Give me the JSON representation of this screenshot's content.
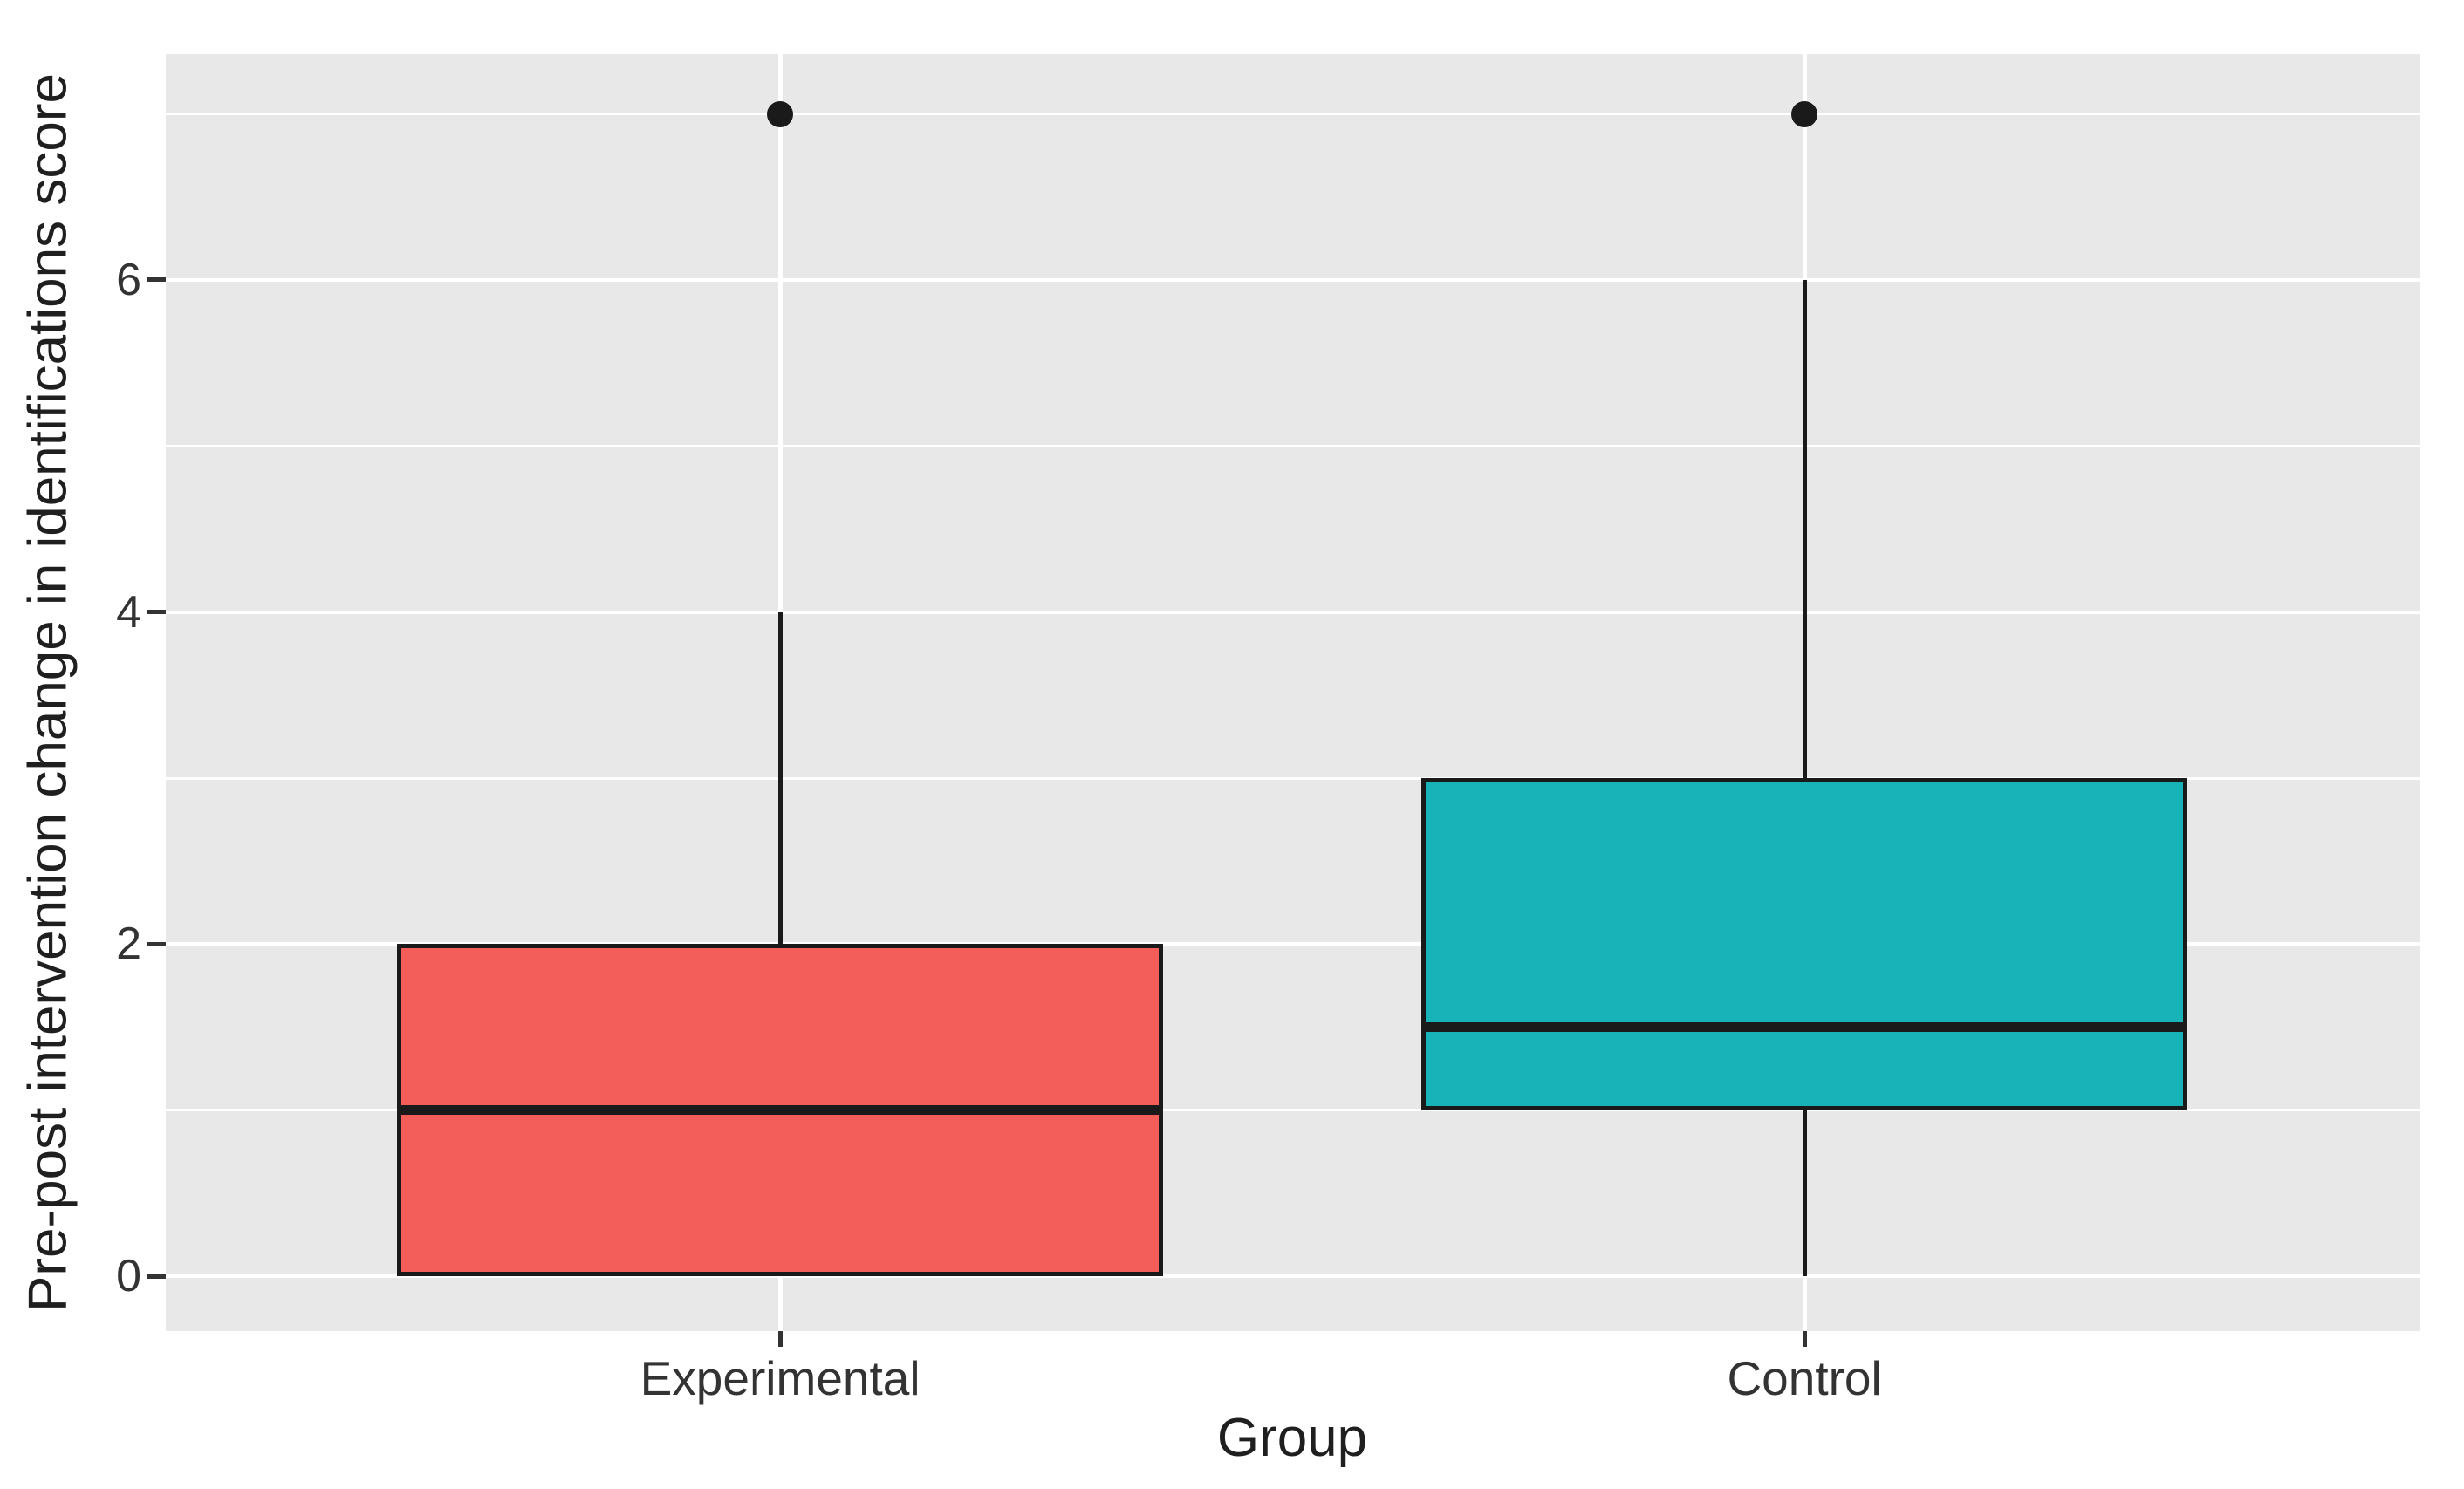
{
  "chart_data": {
    "type": "boxplot",
    "title": "",
    "xlabel": "Group",
    "ylabel": "Pre-post intervention change in identifications score",
    "categories": [
      "Experimental",
      "Control"
    ],
    "y_ticks": [
      0,
      2,
      4,
      6
    ],
    "y_minor_ticks": [
      1,
      3,
      5,
      7
    ],
    "ylim": [
      -0.33,
      7.36
    ],
    "grid": true,
    "legend": "none",
    "panel_bg": "#E8E8E8",
    "grid_color": "#FFFFFF",
    "box_border_color": "#1A1A1A",
    "series": [
      {
        "name": "Experimental",
        "fill": "#F35E5B",
        "whisker_low": 0,
        "q1": 0,
        "median": 1,
        "q3": 2,
        "whisker_high": 4,
        "outliers": [
          7
        ]
      },
      {
        "name": "Control",
        "fill": "#18B3B8",
        "whisker_low": 0,
        "q1": 1,
        "median": 1.5,
        "q3": 3,
        "whisker_high": 6,
        "outliers": [
          7
        ]
      }
    ]
  }
}
